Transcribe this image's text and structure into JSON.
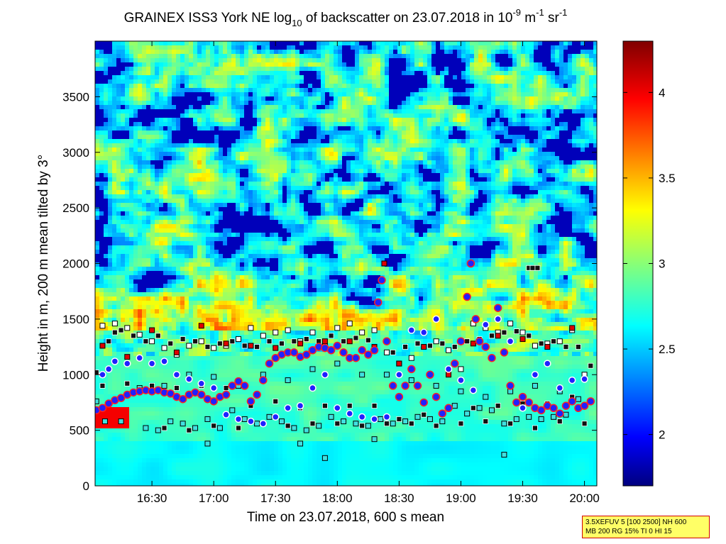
{
  "chart_data": {
    "type": "heatmap",
    "title": {
      "prefix": "GRAINEX ISS3 York NE log",
      "prefix_sub": "10",
      "middle": " of backscatter on 23.07.2018 in 10",
      "exp1": "-9",
      "mid2": " m",
      "exp2": "-1",
      "mid3": " sr",
      "exp3": "-1"
    },
    "xlabel": "Time on 23.07.2018, 600 s mean",
    "ylabel": "Height in m, 200 m mean tilted by 3°",
    "x_range_hours": [
      16.04,
      20.1
    ],
    "x_ticks": [
      {
        "label": "16:30",
        "hour": 16.5
      },
      {
        "label": "17:00",
        "hour": 17.0
      },
      {
        "label": "17:30",
        "hour": 17.5
      },
      {
        "label": "18:00",
        "hour": 18.0
      },
      {
        "label": "18:30",
        "hour": 18.5
      },
      {
        "label": "19:00",
        "hour": 19.0
      },
      {
        "label": "19:30",
        "hour": 19.5
      },
      {
        "label": "20:00",
        "hour": 20.0
      }
    ],
    "ylim": [
      0,
      4000
    ],
    "y_ticks": [
      0,
      500,
      1000,
      1500,
      2000,
      2500,
      3000,
      3500
    ],
    "colorbar": {
      "range": [
        1.7,
        4.3
      ],
      "ticks": [
        2,
        2.5,
        3,
        3.5,
        4
      ],
      "colormap": "jet"
    },
    "layers": {
      "aerosol_top_m": 1400,
      "surface_value": 2.7
    },
    "markers": {
      "mixing_layer_height_blue_dots": [
        [
          16.05,
          680
        ],
        [
          16.1,
          700
        ],
        [
          16.15,
          740
        ],
        [
          16.2,
          770
        ],
        [
          16.25,
          790
        ],
        [
          16.3,
          820
        ],
        [
          16.35,
          840
        ],
        [
          16.4,
          850
        ],
        [
          16.45,
          860
        ],
        [
          16.5,
          850
        ],
        [
          16.55,
          860
        ],
        [
          16.6,
          840
        ],
        [
          16.65,
          830
        ],
        [
          16.7,
          800
        ],
        [
          16.75,
          780
        ],
        [
          16.8,
          820
        ],
        [
          16.85,
          840
        ],
        [
          16.9,
          820
        ],
        [
          16.95,
          780
        ],
        [
          17.0,
          760
        ],
        [
          17.05,
          800
        ],
        [
          17.1,
          820
        ],
        [
          17.15,
          900
        ],
        [
          17.2,
          940
        ],
        [
          17.25,
          900
        ],
        [
          17.3,
          760
        ],
        [
          17.35,
          820
        ],
        [
          17.4,
          950
        ],
        [
          17.45,
          1100
        ],
        [
          17.5,
          1150
        ],
        [
          17.55,
          1180
        ],
        [
          17.6,
          1200
        ],
        [
          17.65,
          1200
        ],
        [
          17.7,
          1160
        ],
        [
          17.75,
          1180
        ],
        [
          17.8,
          1220
        ],
        [
          17.85,
          1250
        ],
        [
          17.9,
          1240
        ],
        [
          17.95,
          1220
        ],
        [
          18.0,
          1260
        ],
        [
          18.05,
          1200
        ],
        [
          18.1,
          1150
        ],
        [
          18.15,
          1150
        ],
        [
          18.2,
          1220
        ],
        [
          18.25,
          1180
        ],
        [
          18.3,
          1220
        ],
        [
          18.33,
          1650
        ],
        [
          18.36,
          1850
        ],
        [
          18.4,
          1300
        ],
        [
          18.45,
          900
        ],
        [
          18.5,
          800
        ],
        [
          18.55,
          900
        ],
        [
          18.6,
          1050
        ],
        [
          18.65,
          900
        ],
        [
          18.7,
          750
        ],
        [
          18.75,
          1000
        ],
        [
          18.8,
          800
        ],
        [
          18.85,
          650
        ],
        [
          18.9,
          700
        ],
        [
          18.95,
          1100
        ],
        [
          19.0,
          1300
        ],
        [
          19.05,
          1700
        ],
        [
          19.08,
          2000
        ],
        [
          19.12,
          1500
        ],
        [
          19.15,
          1300
        ],
        [
          19.2,
          1250
        ],
        [
          19.25,
          1150
        ],
        [
          19.3,
          1600
        ],
        [
          19.35,
          1200
        ],
        [
          19.4,
          900
        ],
        [
          19.45,
          750
        ],
        [
          19.5,
          800
        ],
        [
          19.55,
          750
        ],
        [
          19.6,
          700
        ],
        [
          19.65,
          680
        ],
        [
          19.7,
          720
        ],
        [
          19.75,
          700
        ],
        [
          19.8,
          650
        ],
        [
          19.85,
          720
        ],
        [
          19.9,
          760
        ],
        [
          19.95,
          700
        ],
        [
          20.0,
          720
        ],
        [
          20.05,
          760
        ]
      ],
      "secondary_blue_dots": [
        [
          16.1,
          1000
        ],
        [
          16.15,
          1050
        ],
        [
          16.2,
          1120
        ],
        [
          16.3,
          1100
        ],
        [
          16.4,
          1150
        ],
        [
          16.5,
          1100
        ],
        [
          16.6,
          1120
        ],
        [
          16.7,
          1000
        ],
        [
          16.8,
          960
        ],
        [
          16.9,
          920
        ],
        [
          17.0,
          880
        ],
        [
          17.1,
          640
        ],
        [
          17.2,
          600
        ],
        [
          17.3,
          580
        ],
        [
          17.4,
          560
        ],
        [
          17.5,
          620
        ],
        [
          17.6,
          700
        ],
        [
          17.7,
          720
        ],
        [
          17.8,
          880
        ],
        [
          17.9,
          1000
        ],
        [
          18.0,
          700
        ],
        [
          18.1,
          650
        ],
        [
          18.2,
          620
        ],
        [
          18.3,
          600
        ],
        [
          18.4,
          620
        ],
        [
          18.5,
          1000
        ],
        [
          18.6,
          1400
        ],
        [
          18.7,
          1380
        ],
        [
          18.8,
          1500
        ],
        [
          18.9,
          1050
        ],
        [
          19.0,
          950
        ],
        [
          19.1,
          860
        ],
        [
          19.2,
          1450
        ],
        [
          19.3,
          1500
        ],
        [
          19.4,
          1300
        ],
        [
          19.5,
          700
        ],
        [
          19.6,
          1000
        ],
        [
          19.7,
          1100
        ],
        [
          19.8,
          880
        ],
        [
          19.9,
          950
        ],
        [
          20.0,
          960
        ]
      ],
      "black_boxes": [
        [
          16.05,
          1020
        ],
        [
          16.15,
          1300
        ],
        [
          16.2,
          1380
        ],
        [
          16.25,
          1400
        ],
        [
          16.35,
          1350
        ],
        [
          16.45,
          1300
        ],
        [
          16.55,
          1350
        ],
        [
          16.65,
          1280
        ],
        [
          16.75,
          1320
        ],
        [
          16.85,
          1300
        ],
        [
          16.95,
          1250
        ],
        [
          17.05,
          1280
        ],
        [
          17.15,
          1300
        ],
        [
          17.25,
          1260
        ],
        [
          17.35,
          1250
        ],
        [
          17.45,
          1300
        ],
        [
          17.55,
          1280
        ],
        [
          17.65,
          1300
        ],
        [
          17.75,
          1320
        ],
        [
          17.85,
          1300
        ],
        [
          17.95,
          1350
        ],
        [
          18.05,
          1300
        ],
        [
          18.15,
          1330
        ],
        [
          18.25,
          1310
        ],
        [
          18.45,
          1200
        ],
        [
          18.55,
          1250
        ],
        [
          18.65,
          1280
        ],
        [
          18.75,
          1260
        ],
        [
          18.85,
          1280
        ],
        [
          18.95,
          1250
        ],
        [
          19.05,
          1300
        ],
        [
          19.15,
          1320
        ],
        [
          19.25,
          1350
        ],
        [
          19.35,
          1380
        ],
        [
          19.45,
          1390
        ],
        [
          19.55,
          1350
        ],
        [
          19.65,
          1280
        ],
        [
          19.75,
          1300
        ],
        [
          19.85,
          1250
        ],
        [
          19.95,
          1250
        ],
        [
          20.05,
          1080
        ],
        [
          16.1,
          900
        ],
        [
          16.3,
          920
        ],
        [
          16.5,
          900
        ],
        [
          16.7,
          880
        ],
        [
          16.9,
          900
        ],
        [
          17.1,
          880
        ],
        [
          17.3,
          720
        ],
        [
          17.5,
          760
        ],
        [
          17.7,
          700
        ],
        [
          17.9,
          720
        ],
        [
          18.1,
          720
        ],
        [
          18.3,
          720
        ],
        [
          18.5,
          600
        ],
        [
          18.7,
          640
        ],
        [
          18.9,
          700
        ],
        [
          19.1,
          700
        ],
        [
          19.3,
          720
        ],
        [
          19.5,
          740
        ],
        [
          19.7,
          740
        ],
        [
          19.9,
          800
        ],
        [
          16.6,
          520
        ],
        [
          16.8,
          500
        ],
        [
          17.0,
          540
        ],
        [
          17.2,
          520
        ],
        [
          17.4,
          560
        ],
        [
          17.6,
          540
        ],
        [
          17.8,
          560
        ],
        [
          18.0,
          560
        ],
        [
          18.2,
          540
        ],
        [
          18.4,
          560
        ],
        [
          18.6,
          560
        ],
        [
          18.8,
          540
        ],
        [
          19.0,
          560
        ],
        [
          19.2,
          580
        ],
        [
          19.4,
          560
        ],
        [
          19.6,
          520
        ],
        [
          19.8,
          580
        ],
        [
          20.0,
          560
        ],
        [
          19.55,
          1960
        ],
        [
          19.58,
          1960
        ],
        [
          19.62,
          1960
        ]
      ],
      "cyan_boxes": [
        [
          16.05,
          760
        ],
        [
          16.12,
          580
        ],
        [
          16.25,
          580
        ],
        [
          16.45,
          520
        ],
        [
          16.55,
          500
        ],
        [
          16.65,
          580
        ],
        [
          16.75,
          560
        ],
        [
          16.85,
          520
        ],
        [
          16.95,
          600
        ],
        [
          17.05,
          520
        ],
        [
          17.15,
          680
        ],
        [
          17.25,
          600
        ],
        [
          17.35,
          560
        ],
        [
          17.45,
          620
        ],
        [
          17.55,
          580
        ],
        [
          17.65,
          520
        ],
        [
          17.75,
          500
        ],
        [
          17.85,
          540
        ],
        [
          17.95,
          620
        ],
        [
          18.05,
          580
        ],
        [
          18.15,
          560
        ],
        [
          18.25,
          540
        ],
        [
          18.35,
          600
        ],
        [
          18.45,
          560
        ],
        [
          18.55,
          580
        ],
        [
          18.65,
          620
        ],
        [
          18.75,
          600
        ],
        [
          18.85,
          580
        ],
        [
          18.95,
          720
        ],
        [
          19.05,
          650
        ],
        [
          19.15,
          700
        ],
        [
          19.25,
          680
        ],
        [
          19.35,
          560
        ],
        [
          19.45,
          600
        ],
        [
          19.55,
          620
        ],
        [
          19.65,
          600
        ],
        [
          19.75,
          620
        ],
        [
          19.85,
          640
        ],
        [
          19.95,
          780
        ],
        [
          16.4,
          880
        ],
        [
          16.6,
          900
        ],
        [
          16.8,
          1000
        ],
        [
          17.0,
          980
        ],
        [
          17.2,
          900
        ],
        [
          17.4,
          1000
        ],
        [
          17.6,
          950
        ],
        [
          17.8,
          1050
        ],
        [
          18.0,
          1100
        ],
        [
          18.2,
          1000
        ],
        [
          18.4,
          1000
        ],
        [
          18.6,
          950
        ],
        [
          18.8,
          900
        ],
        [
          19.0,
          850
        ],
        [
          19.2,
          800
        ],
        [
          19.4,
          850
        ],
        [
          19.6,
          900
        ],
        [
          19.8,
          850
        ],
        [
          17.7,
          380
        ],
        [
          17.9,
          250
        ],
        [
          18.3,
          420
        ],
        [
          19.35,
          280
        ],
        [
          16.95,
          380
        ]
      ],
      "white_boxes": [
        [
          16.1,
          1440
        ],
        [
          16.2,
          1460
        ],
        [
          16.3,
          1420
        ],
        [
          16.4,
          1360
        ],
        [
          16.5,
          1300
        ],
        [
          16.6,
          1240
        ],
        [
          16.7,
          1180
        ],
        [
          16.8,
          1260
        ],
        [
          16.9,
          1300
        ],
        [
          17.0,
          1240
        ],
        [
          17.1,
          1260
        ],
        [
          17.2,
          1320
        ],
        [
          17.3,
          1420
        ],
        [
          17.4,
          1350
        ],
        [
          17.5,
          1380
        ],
        [
          17.6,
          1400
        ],
        [
          17.7,
          1300
        ],
        [
          17.8,
          1380
        ],
        [
          17.9,
          1260
        ],
        [
          18.0,
          1420
        ],
        [
          18.1,
          1460
        ],
        [
          18.2,
          1380
        ],
        [
          18.3,
          1400
        ],
        [
          18.4,
          1200
        ],
        [
          18.5,
          1100
        ],
        [
          18.6,
          1150
        ],
        [
          18.7,
          1380
        ],
        [
          18.8,
          1300
        ],
        [
          18.9,
          1220
        ],
        [
          19.0,
          1050
        ],
        [
          19.1,
          1460
        ],
        [
          19.2,
          1420
        ],
        [
          19.3,
          1380
        ],
        [
          19.4,
          1460
        ],
        [
          19.5,
          1380
        ],
        [
          19.6,
          1260
        ],
        [
          19.7,
          1280
        ],
        [
          19.8,
          1300
        ],
        [
          19.9,
          1400
        ],
        [
          20.0,
          1000
        ]
      ],
      "red_boxes": [
        [
          16.1,
          1260
        ],
        [
          16.3,
          1160
        ],
        [
          16.5,
          1400
        ],
        [
          16.7,
          1200
        ],
        [
          16.9,
          1440
        ],
        [
          17.1,
          1280
        ],
        [
          17.3,
          1260
        ],
        [
          17.5,
          1240
        ],
        [
          17.7,
          1280
        ],
        [
          17.9,
          1300
        ],
        [
          18.1,
          1300
        ],
        [
          18.3,
          1250
        ],
        [
          18.38,
          2000
        ],
        [
          18.5,
          1100
        ],
        [
          18.7,
          1250
        ],
        [
          18.9,
          1000
        ],
        [
          19.1,
          1280
        ],
        [
          19.3,
          1350
        ],
        [
          19.5,
          1320
        ],
        [
          19.7,
          1250
        ],
        [
          19.9,
          1420
        ]
      ]
    }
  },
  "params_box": {
    "line1": "3.5XEFUV 5 [100 2500] NH 600",
    "line2": "MB 200 RG 15% TI 0 HI 15"
  }
}
